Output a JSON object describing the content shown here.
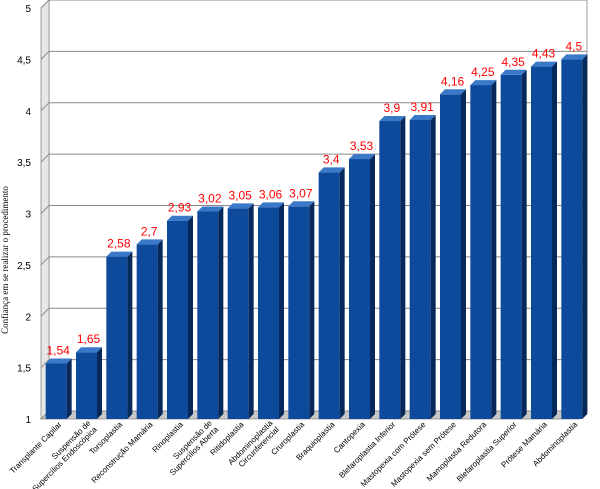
{
  "chart_data": {
    "type": "bar",
    "title": "",
    "xlabel": "",
    "ylabel": "Confiança em se realizar o procedimento",
    "ylim": [
      1,
      5
    ],
    "yticks": [
      "1",
      "1,5",
      "2",
      "2,5",
      "3",
      "3,5",
      "4",
      "4,5",
      "5"
    ],
    "grid": true,
    "legend": "none",
    "categories": [
      "Transplante Capilar",
      "Suspensão de Supercílios Endoscópica",
      "Torsoplastia",
      "Reconstrução Mamária",
      "Rinoplastia",
      "Suspensão de Supercílios Aberta",
      "Ritidoplastia",
      "Abdominoplastia Circunferencial",
      "Cruroplastia",
      "Braquioplastia",
      "Cantopexia",
      "Blefaroplastia Inferior",
      "Mastopexia com Prótese",
      "Mastopexia sem Prótese",
      "Mamoplastia Redutora",
      "Blefaroplastia Superior",
      "Prótese Mamária",
      "Abdominoplastia"
    ],
    "values": [
      1.54,
      1.65,
      2.58,
      2.7,
      2.93,
      3.02,
      3.05,
      3.06,
      3.07,
      3.4,
      3.53,
      3.9,
      3.91,
      4.16,
      4.25,
      4.35,
      4.43,
      4.5
    ],
    "data_labels": [
      "1,54",
      "1,65",
      "2,58",
      "2,7",
      "2,93",
      "3,02",
      "3,05",
      "3,06",
      "3,07",
      "3,4",
      "3,53",
      "3,9",
      "3,91",
      "4,16",
      "4,25",
      "4,35",
      "4,43",
      "4,5"
    ],
    "colors": {
      "bar_front": "#0d4a9c",
      "bar_side": "#07285a",
      "bar_top": "#3a78c8",
      "label": "#ff0000",
      "grid": "#8a8a8a",
      "wall": "#ffffff",
      "floor": "#c8c8c8"
    }
  }
}
